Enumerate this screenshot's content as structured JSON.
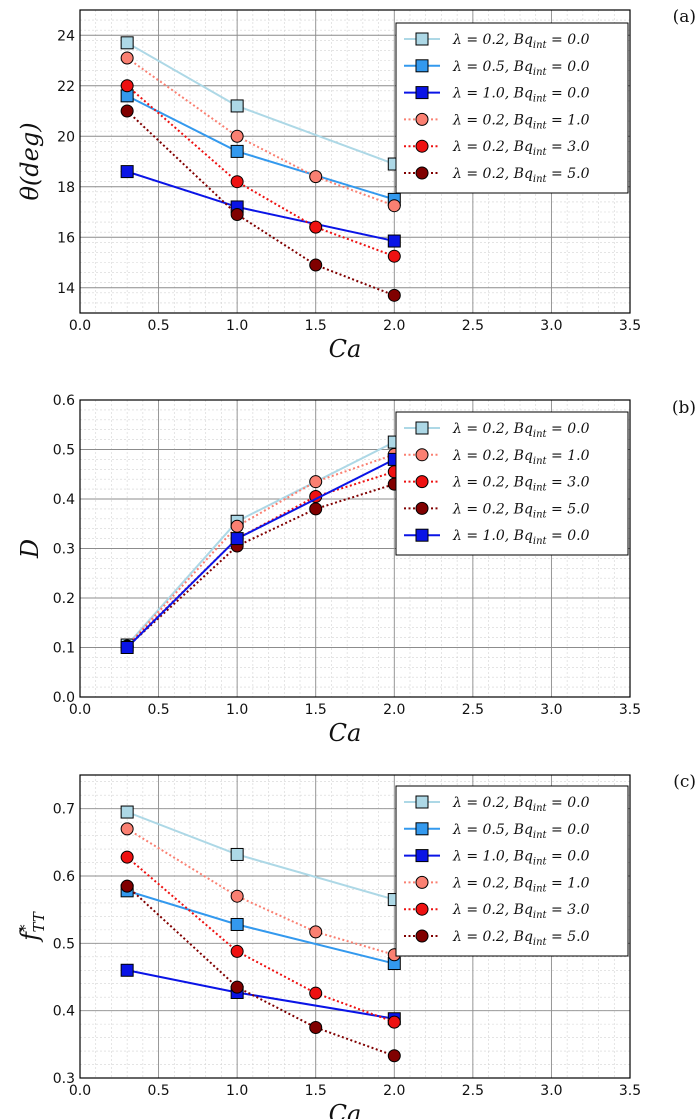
{
  "chart_data": [
    {
      "type": "line",
      "panel_label": "(a)",
      "xlabel": "Ca",
      "ylabel": "θ(deg)",
      "xlim": [
        0.0,
        3.5
      ],
      "ylim": [
        13,
        25
      ],
      "xticks": [
        0.0,
        0.5,
        1.0,
        1.5,
        2.0,
        2.5,
        3.0,
        3.5
      ],
      "xtick_labels": [
        "0.0",
        "0.5",
        "1.0",
        "1.5",
        "2.0",
        "2.5",
        "3.0",
        "3.5"
      ],
      "yticks": [
        14,
        16,
        18,
        20,
        22,
        24
      ],
      "ytick_labels": [
        "14",
        "16",
        "18",
        "20",
        "22",
        "24"
      ],
      "grid": true,
      "legend_position": "top-right",
      "series": [
        {
          "name": "λ = 0.2, Bq_int = 0.0",
          "color": "#add8e6",
          "marker": "square",
          "dash": "solid",
          "x": [
            0.3,
            1.0,
            2.0
          ],
          "y": [
            23.7,
            21.2,
            18.9
          ]
        },
        {
          "name": "λ = 0.5, Bq_int = 0.0",
          "color": "#3399ee",
          "marker": "square",
          "dash": "solid",
          "x": [
            0.3,
            1.0,
            2.0
          ],
          "y": [
            21.6,
            19.4,
            17.5
          ]
        },
        {
          "name": "λ = 1.0, Bq_int = 0.0",
          "color": "#0a14e6",
          "marker": "square",
          "dash": "solid",
          "x": [
            0.3,
            1.0,
            2.0
          ],
          "y": [
            18.6,
            17.2,
            15.85
          ]
        },
        {
          "name": "λ = 0.2, Bq_int = 1.0",
          "color": "#fa8072",
          "marker": "circle",
          "dash": "dotted",
          "x": [
            0.3,
            1.0,
            1.5,
            2.0
          ],
          "y": [
            23.1,
            20.0,
            18.4,
            17.25
          ]
        },
        {
          "name": "λ = 0.2, Bq_int = 3.0",
          "color": "#ee1111",
          "marker": "circle",
          "dash": "dotted",
          "x": [
            0.3,
            1.0,
            1.5,
            2.0
          ],
          "y": [
            22.0,
            18.2,
            16.4,
            15.25
          ]
        },
        {
          "name": "λ = 0.2, Bq_int = 5.0",
          "color": "#800000",
          "marker": "circle",
          "dash": "dotted",
          "x": [
            0.3,
            1.0,
            1.5,
            2.0
          ],
          "y": [
            21.0,
            16.9,
            14.9,
            13.7
          ]
        }
      ]
    },
    {
      "type": "line",
      "panel_label": "(b)",
      "xlabel": "Ca",
      "ylabel": "D",
      "xlim": [
        0.0,
        3.5
      ],
      "ylim": [
        0.0,
        0.6
      ],
      "xticks": [
        0.0,
        0.5,
        1.0,
        1.5,
        2.0,
        2.5,
        3.0,
        3.5
      ],
      "xtick_labels": [
        "0.0",
        "0.5",
        "1.0",
        "1.5",
        "2.0",
        "2.5",
        "3.0",
        "3.5"
      ],
      "yticks": [
        0.0,
        0.1,
        0.2,
        0.3,
        0.4,
        0.5,
        0.6
      ],
      "ytick_labels": [
        "0.0",
        "0.1",
        "0.2",
        "0.3",
        "0.4",
        "0.5",
        "0.6"
      ],
      "grid": true,
      "legend_position": "top-right",
      "series": [
        {
          "name": "λ = 0.2, Bq_int = 0.0",
          "color": "#add8e6",
          "marker": "square",
          "dash": "solid",
          "x": [
            0.3,
            1.0,
            2.0
          ],
          "y": [
            0.105,
            0.355,
            0.515
          ]
        },
        {
          "name": "λ = 0.2, Bq_int = 1.0",
          "color": "#fa8072",
          "marker": "circle",
          "dash": "dotted",
          "x": [
            0.3,
            1.0,
            1.5,
            2.0
          ],
          "y": [
            0.103,
            0.345,
            0.435,
            0.49
          ]
        },
        {
          "name": "λ = 0.2, Bq_int = 3.0",
          "color": "#ee1111",
          "marker": "circle",
          "dash": "dotted",
          "x": [
            0.3,
            1.0,
            1.5,
            2.0
          ],
          "y": [
            0.102,
            0.32,
            0.405,
            0.455
          ]
        },
        {
          "name": "λ = 0.2, Bq_int = 5.0",
          "color": "#800000",
          "marker": "circle",
          "dash": "dotted",
          "x": [
            0.3,
            1.0,
            1.5,
            2.0
          ],
          "y": [
            0.101,
            0.305,
            0.38,
            0.43
          ]
        },
        {
          "name": "λ = 1.0, Bq_int = 0.0",
          "color": "#0a14e6",
          "marker": "square",
          "dash": "solid",
          "x": [
            0.3,
            1.0,
            2.0
          ],
          "y": [
            0.1,
            0.32,
            0.48
          ]
        }
      ]
    },
    {
      "type": "line",
      "panel_label": "(c)",
      "xlabel": "Ca",
      "ylabel": "f*_TT",
      "xlim": [
        0.0,
        3.5
      ],
      "ylim": [
        0.3,
        0.75
      ],
      "xticks": [
        0.0,
        0.5,
        1.0,
        1.5,
        2.0,
        2.5,
        3.0,
        3.5
      ],
      "xtick_labels": [
        "0.0",
        "0.5",
        "1.0",
        "1.5",
        "2.0",
        "2.5",
        "3.0",
        "3.5"
      ],
      "yticks": [
        0.3,
        0.4,
        0.5,
        0.6,
        0.7
      ],
      "ytick_labels": [
        "0.3",
        "0.4",
        "0.5",
        "0.6",
        "0.7"
      ],
      "grid": true,
      "legend_position": "top-right",
      "series": [
        {
          "name": "λ = 0.2, Bq_int = 0.0",
          "color": "#add8e6",
          "marker": "square",
          "dash": "solid",
          "x": [
            0.3,
            1.0,
            2.0
          ],
          "y": [
            0.695,
            0.632,
            0.565
          ]
        },
        {
          "name": "λ = 0.5, Bq_int = 0.0",
          "color": "#3399ee",
          "marker": "square",
          "dash": "solid",
          "x": [
            0.3,
            1.0,
            2.0
          ],
          "y": [
            0.578,
            0.528,
            0.47
          ]
        },
        {
          "name": "λ = 1.0, Bq_int = 0.0",
          "color": "#0a14e6",
          "marker": "square",
          "dash": "solid",
          "x": [
            0.3,
            1.0,
            2.0
          ],
          "y": [
            0.46,
            0.427,
            0.388
          ]
        },
        {
          "name": "λ = 0.2, Bq_int = 1.0",
          "color": "#fa8072",
          "marker": "circle",
          "dash": "dotted",
          "x": [
            0.3,
            1.0,
            1.5,
            2.0
          ],
          "y": [
            0.67,
            0.57,
            0.517,
            0.483
          ]
        },
        {
          "name": "λ = 0.2, Bq_int = 3.0",
          "color": "#ee1111",
          "marker": "circle",
          "dash": "dotted",
          "x": [
            0.3,
            1.0,
            1.5,
            2.0
          ],
          "y": [
            0.628,
            0.488,
            0.426,
            0.383
          ]
        },
        {
          "name": "λ = 0.2, Bq_int = 5.0",
          "color": "#800000",
          "marker": "circle",
          "dash": "dotted",
          "x": [
            0.3,
            1.0,
            1.5,
            2.0
          ],
          "y": [
            0.585,
            0.435,
            0.375,
            0.333
          ]
        }
      ]
    }
  ]
}
